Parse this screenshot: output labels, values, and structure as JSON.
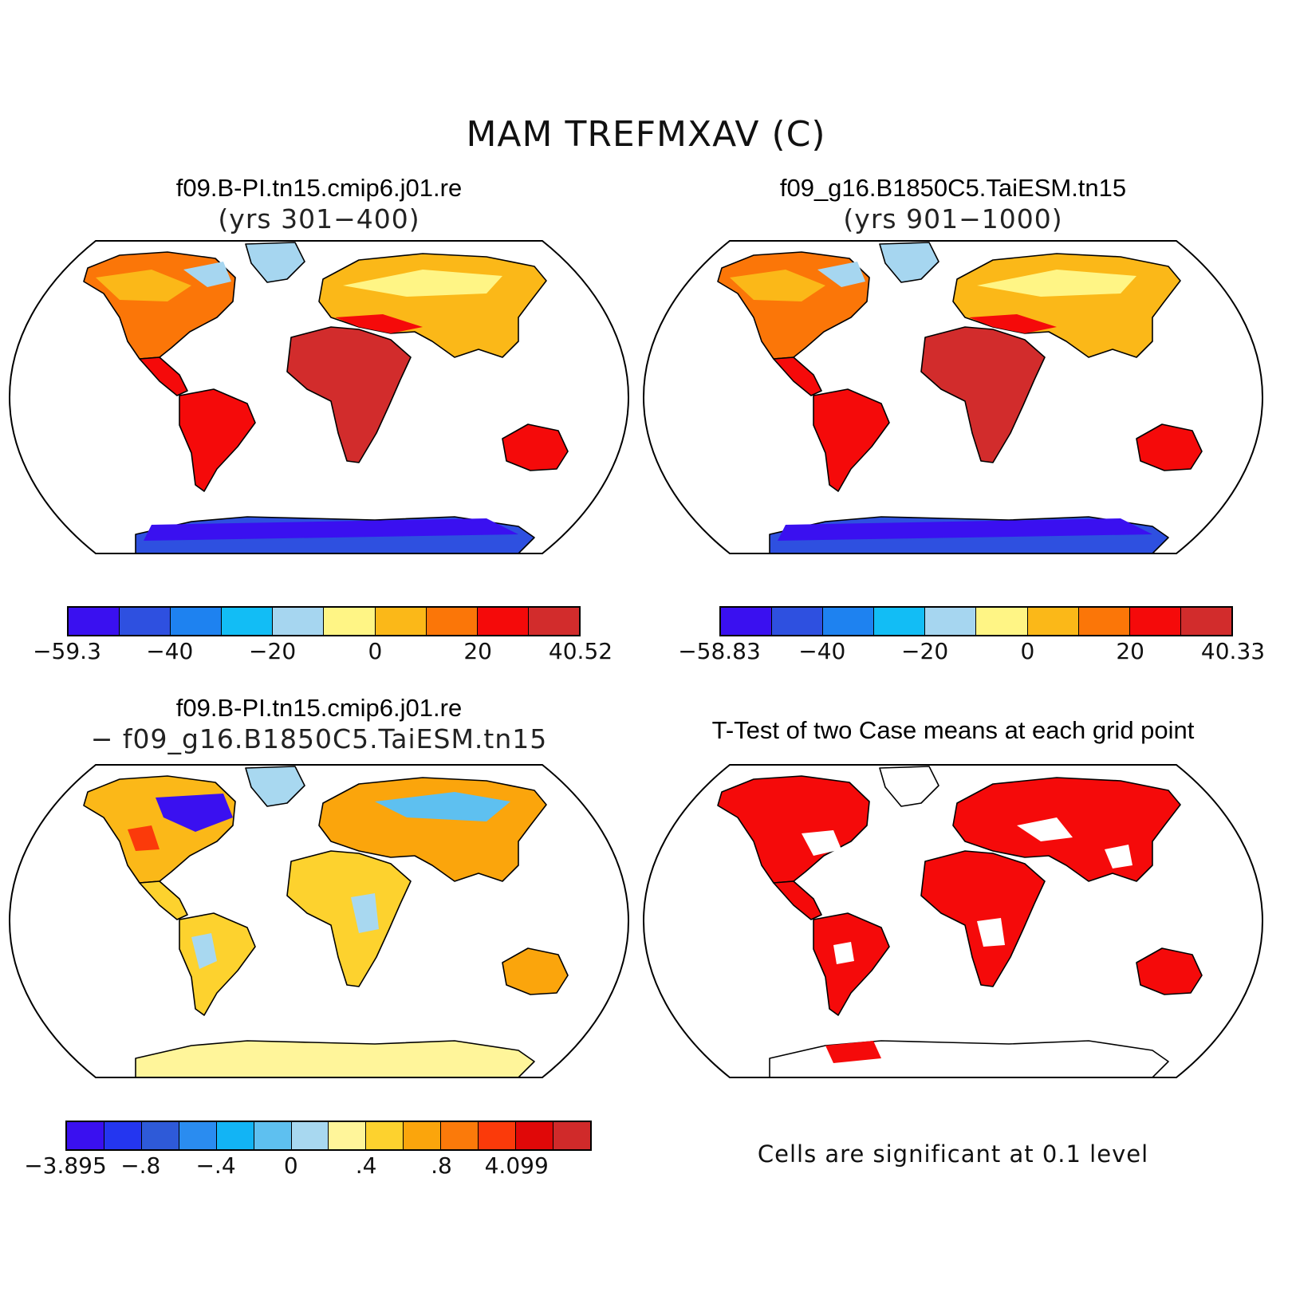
{
  "title": "MAM TREFMXAV (C)",
  "panels": [
    {
      "id": "case1",
      "title": "f09.B-PI.tn15.cmip6.j01.re",
      "subtitle": "(yrs 301−400)",
      "colorbar": {
        "colors": [
          "#3a10f0",
          "#2e50e0",
          "#1e82f0",
          "#12bdf5",
          "#a6d6f0",
          "#fff585",
          "#fbb818",
          "#fb7608",
          "#f50a0a",
          "#d22c2c"
        ],
        "ticks": [
          "−59.3",
          "−40",
          "−20",
          "0",
          "20",
          "40.52"
        ]
      }
    },
    {
      "id": "case2",
      "title": "f09_g16.B1850C5.TaiESM.tn15",
      "subtitle": "(yrs 901−1000)",
      "colorbar": {
        "colors": [
          "#3a10f0",
          "#2e50e0",
          "#1e82f0",
          "#12bdf5",
          "#a6d6f0",
          "#fff585",
          "#fbb818",
          "#fb7608",
          "#f50a0a",
          "#d22c2c"
        ],
        "ticks": [
          "−58.83",
          "−40",
          "−20",
          "0",
          "20",
          "40.33"
        ]
      }
    },
    {
      "id": "diff",
      "title": "f09.B-PI.tn15.cmip6.j01.re",
      "subtitle": "− f09_g16.B1850C5.TaiESM.tn15",
      "colorbar": {
        "colors": [
          "#3a10f0",
          "#2436f0",
          "#2e5ad8",
          "#2a8cf0",
          "#12b4f5",
          "#5ec0f0",
          "#a8d8f0",
          "#fff59a",
          "#fdd22e",
          "#fba50c",
          "#fb7a0a",
          "#fb3a0a",
          "#e00808",
          "#d02a2a"
        ],
        "ticks": [
          "−3.895",
          "−.8",
          "−.4",
          "0",
          ".4",
          ".8",
          "4.099"
        ]
      }
    },
    {
      "id": "ttest",
      "title": "T-Test of two Case means at each grid point",
      "note": "Cells are significant at 0.1 level"
    }
  ]
}
